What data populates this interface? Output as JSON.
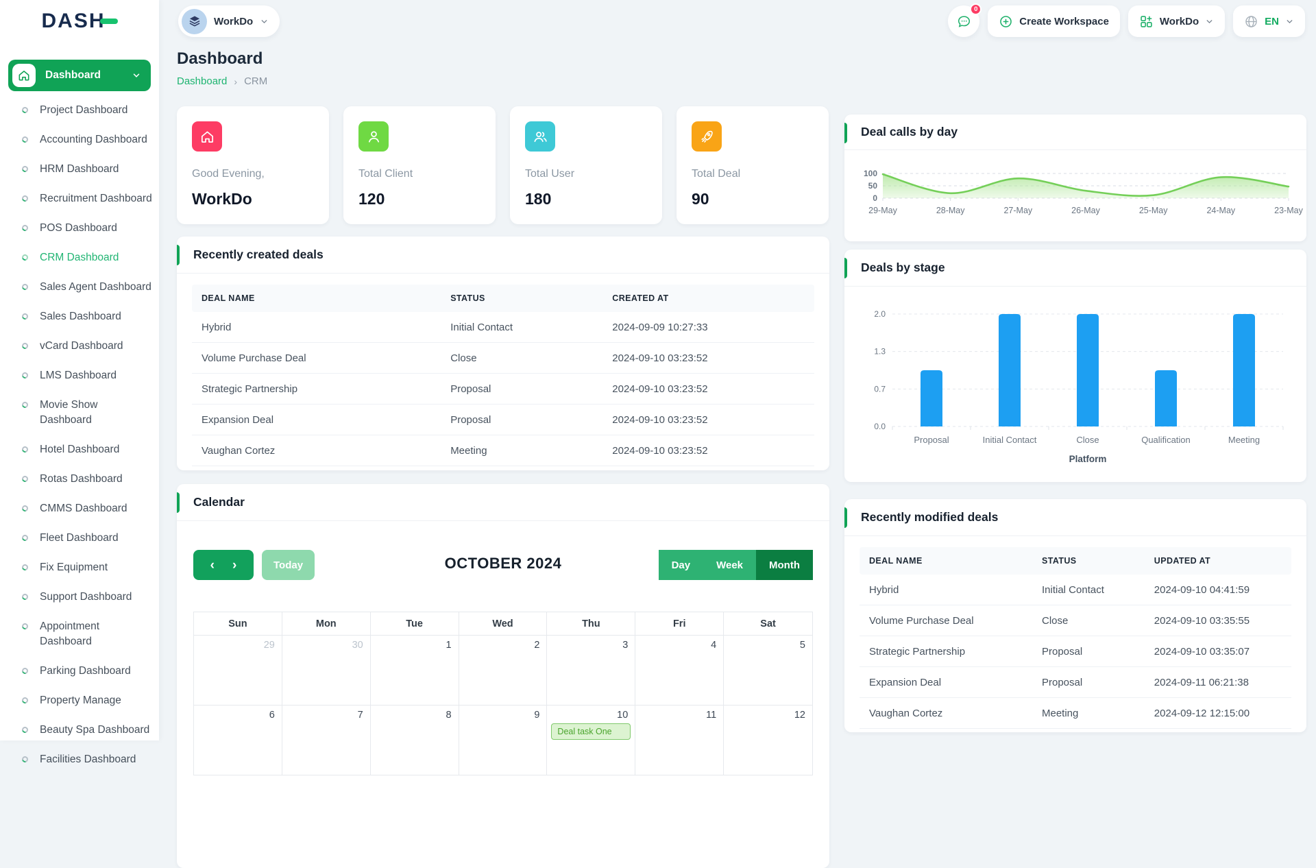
{
  "colors": {
    "primary_green": "#10a356",
    "light_green_btn": "#8ed9ad",
    "dark_green_btn": "#0b7e41",
    "mid_green_btn": "#2eb273",
    "badge_red": "#fd3c64",
    "bar_blue": "#1d9ff2",
    "area_line_green": "#74cf58",
    "area_fill_green": "#aee598"
  },
  "header": {
    "logo_text": "DASH",
    "workspace_selector_label": "WorkDo",
    "messages_badge": "0",
    "create_workspace_label": "Create Workspace",
    "workspace_menu_label": "WorkDo",
    "language_label": "EN"
  },
  "sidebar": {
    "active_section": "Dashboard",
    "items": [
      {
        "label": "Project Dashboard",
        "active": false
      },
      {
        "label": "Accounting Dashboard",
        "active": false
      },
      {
        "label": "HRM Dashboard",
        "active": false
      },
      {
        "label": "Recruitment Dashboard",
        "active": false
      },
      {
        "label": "POS Dashboard",
        "active": false
      },
      {
        "label": "CRM Dashboard",
        "active": true
      },
      {
        "label": "Sales Agent Dashboard",
        "active": false
      },
      {
        "label": "Sales Dashboard",
        "active": false
      },
      {
        "label": "vCard Dashboard",
        "active": false
      },
      {
        "label": "LMS Dashboard",
        "active": false
      },
      {
        "label": "Movie Show Dashboard",
        "active": false
      },
      {
        "label": "Hotel Dashboard",
        "active": false
      },
      {
        "label": "Rotas Dashboard",
        "active": false
      },
      {
        "label": "CMMS Dashboard",
        "active": false
      },
      {
        "label": "Fleet Dashboard",
        "active": false
      },
      {
        "label": "Fix Equipment",
        "active": false
      },
      {
        "label": "Support Dashboard",
        "active": false
      },
      {
        "label": "Appointment Dashboard",
        "active": false
      },
      {
        "label": "Parking Dashboard",
        "active": false
      },
      {
        "label": "Property Manage",
        "active": false
      },
      {
        "label": "Beauty Spa Dashboard",
        "active": false
      },
      {
        "label": "Facilities Dashboard",
        "active": false
      }
    ]
  },
  "page": {
    "title": "Dashboard",
    "breadcrumb_link": "Dashboard",
    "breadcrumb_current": "CRM"
  },
  "stats": [
    {
      "icon": "home-icon",
      "color": "#fd3c64",
      "label": "Good Evening,",
      "value": "WorkDo"
    },
    {
      "icon": "user-icon",
      "color": "#6fd943",
      "label": "Total Client",
      "value": "120"
    },
    {
      "icon": "users-icon",
      "color": "#3ec9d6",
      "label": "Total User",
      "value": "180"
    },
    {
      "icon": "rocket-icon",
      "color": "#f9a416",
      "label": "Total Deal",
      "value": "90"
    }
  ],
  "recently_created": {
    "title": "Recently created deals",
    "columns": [
      "Deal Name",
      "Status",
      "Created At"
    ],
    "rows": [
      [
        "Hybrid",
        "Initial Contact",
        "2024-09-09 10:27:33"
      ],
      [
        "Volume Purchase Deal",
        "Close",
        "2024-09-10 03:23:52"
      ],
      [
        "Strategic Partnership",
        "Proposal",
        "2024-09-10 03:23:52"
      ],
      [
        "Expansion Deal",
        "Proposal",
        "2024-09-10 03:23:52"
      ],
      [
        "Vaughan Cortez",
        "Meeting",
        "2024-09-10 03:23:52"
      ]
    ]
  },
  "recently_modified": {
    "title": "Recently modified deals",
    "columns": [
      "Deal Name",
      "Status",
      "Updated At"
    ],
    "rows": [
      [
        "Hybrid",
        "Initial Contact",
        "2024-09-10 04:41:59"
      ],
      [
        "Volume Purchase Deal",
        "Close",
        "2024-09-10 03:35:55"
      ],
      [
        "Strategic Partnership",
        "Proposal",
        "2024-09-10 03:35:07"
      ],
      [
        "Expansion Deal",
        "Proposal",
        "2024-09-11 06:21:38"
      ],
      [
        "Vaughan Cortez",
        "Meeting",
        "2024-09-12 12:15:00"
      ]
    ]
  },
  "calendar": {
    "title": "Calendar",
    "today_label": "Today",
    "month_title": "OCTOBER 2024",
    "views": [
      "Day",
      "Week",
      "Month"
    ],
    "active_view": "Month",
    "day_headers": [
      "Sun",
      "Mon",
      "Tue",
      "Wed",
      "Thu",
      "Fri",
      "Sat"
    ],
    "weeks": [
      [
        {
          "d": "29",
          "muted": true
        },
        {
          "d": "30",
          "muted": true
        },
        {
          "d": "1"
        },
        {
          "d": "2"
        },
        {
          "d": "3"
        },
        {
          "d": "4"
        },
        {
          "d": "5"
        }
      ],
      [
        {
          "d": "6"
        },
        {
          "d": "7"
        },
        {
          "d": "8"
        },
        {
          "d": "9"
        },
        {
          "d": "10",
          "event": "Deal task One"
        },
        {
          "d": "11"
        },
        {
          "d": "12"
        }
      ]
    ]
  },
  "chart_data": [
    {
      "type": "area",
      "title": "Deal calls by day",
      "x": [
        "29-May",
        "28-May",
        "27-May",
        "26-May",
        "25-May",
        "24-May",
        "23-May"
      ],
      "values": [
        97,
        20,
        80,
        30,
        12,
        85,
        47
      ],
      "yticks": [
        100,
        50,
        0
      ],
      "ylim": [
        0,
        100
      ],
      "grid": "dashed-horizontal",
      "legend": "none",
      "line_color": "#74cf58",
      "fill_color": "#aee598"
    },
    {
      "type": "bar",
      "title": "Deals by stage",
      "categories": [
        "Proposal",
        "Initial Contact",
        "Close",
        "Qualification",
        "Meeting"
      ],
      "values": [
        1,
        2,
        2,
        1,
        2
      ],
      "ytick_labels": [
        "0.0",
        "0.7",
        "1.3",
        "2.0"
      ],
      "ylim": [
        0,
        2
      ],
      "xlabel": "Platform",
      "grid": "dashed-horizontal",
      "legend": "none",
      "bar_color": "#1d9ff2"
    }
  ]
}
